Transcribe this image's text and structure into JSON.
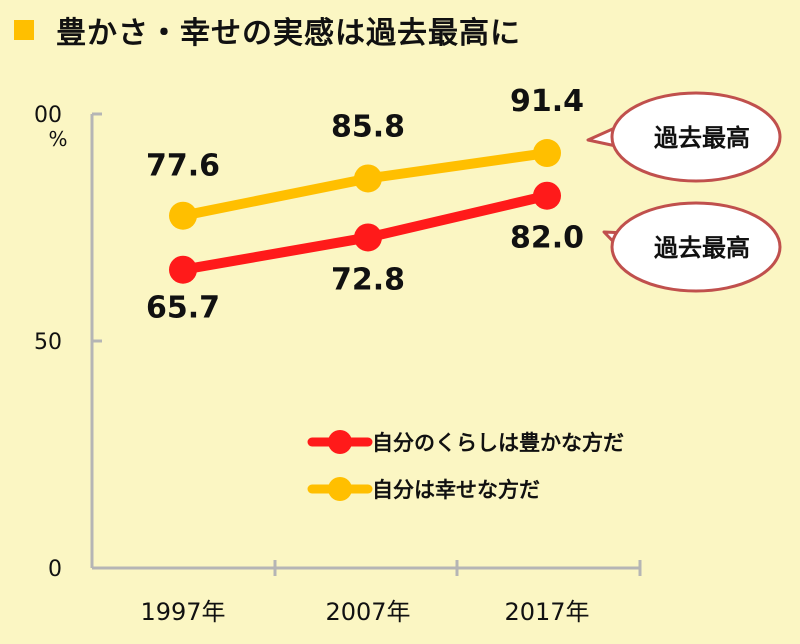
{
  "title": "豊かさ・幸せの実感は過去最高に",
  "colors": {
    "background": "#fbf6c3",
    "title_marker": "#ffbf00",
    "series_happy": "#ffbf00",
    "series_rich": "#ff1a1a",
    "axis": "#b5b5b5",
    "callout_border": "#c0504d"
  },
  "callouts": [
    "過去最高",
    "過去最高"
  ],
  "chart_data": {
    "type": "line",
    "categories": [
      "1997年",
      "2007年",
      "2017年"
    ],
    "series": [
      {
        "name": "自分のくらしは豊かな方だ",
        "values": [
          65.7,
          72.8,
          82.0
        ]
      },
      {
        "name": "自分は幸せな方だ",
        "values": [
          77.6,
          85.8,
          91.4
        ]
      }
    ],
    "ylim": [
      0,
      100
    ],
    "y_ticks": [
      "0",
      "50",
      "00"
    ],
    "y_unit": "%",
    "xlabel": "",
    "ylabel": "",
    "grid": false,
    "legend_position": "bottom-right"
  }
}
